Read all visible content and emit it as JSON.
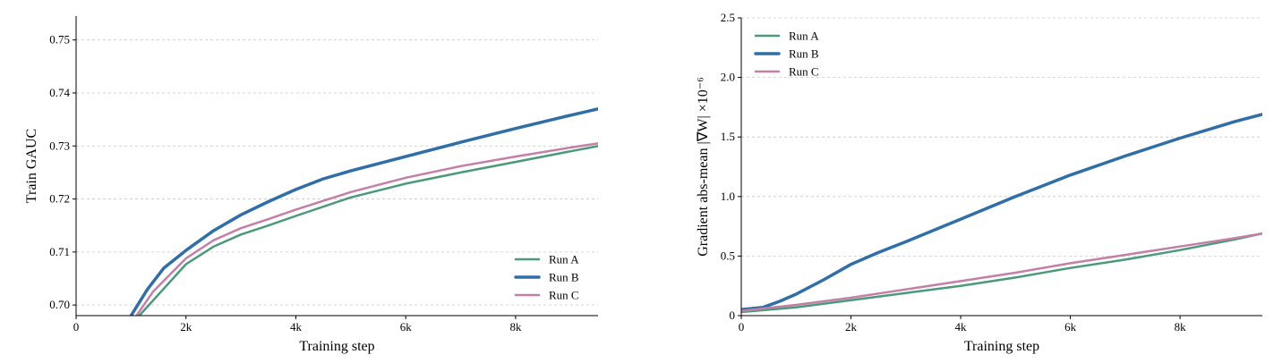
{
  "chart_data": [
    {
      "type": "line",
      "xlabel": "Training step",
      "ylabel": "Train GAUC",
      "xlim": [
        0,
        9500
      ],
      "ylim": [
        0.698,
        0.7545
      ],
      "xticks": [
        0,
        2000,
        4000,
        6000,
        8000
      ],
      "xtick_labels": [
        "0",
        "2k",
        "4k",
        "6k",
        "8k"
      ],
      "yticks": [
        0.7,
        0.71,
        0.72,
        0.73,
        0.74,
        0.75
      ],
      "ytick_labels": [
        "0.70",
        "0.71",
        "0.72",
        "0.73",
        "0.74",
        "0.75"
      ],
      "grid": "horizontal",
      "legend_position": "lower-right",
      "series": [
        {
          "name": "Run A",
          "color": "#4a9a7a",
          "width": 2.5,
          "points": [
            [
              1150,
              0.698
            ],
            [
              1500,
              0.702
            ],
            [
              2000,
              0.7077
            ],
            [
              2500,
              0.711
            ],
            [
              3000,
              0.7133
            ],
            [
              3500,
              0.715
            ],
            [
              4000,
              0.7168
            ],
            [
              5000,
              0.7203
            ],
            [
              6000,
              0.7229
            ],
            [
              7000,
              0.725
            ],
            [
              8000,
              0.727
            ],
            [
              9000,
              0.729
            ],
            [
              9500,
              0.73
            ]
          ]
        },
        {
          "name": "Run B",
          "color": "#2f6ea6",
          "width": 3.5,
          "points": [
            [
              1000,
              0.698
            ],
            [
              1300,
              0.703
            ],
            [
              1600,
              0.707
            ],
            [
              2000,
              0.7103
            ],
            [
              2500,
              0.714
            ],
            [
              3000,
              0.717
            ],
            [
              3500,
              0.7195
            ],
            [
              4000,
              0.7218
            ],
            [
              4500,
              0.7238
            ],
            [
              5000,
              0.7253
            ],
            [
              6000,
              0.728
            ],
            [
              7000,
              0.7307
            ],
            [
              8000,
              0.7333
            ],
            [
              9000,
              0.7358
            ],
            [
              9500,
              0.737
            ]
          ]
        },
        {
          "name": "Run C",
          "color": "#c47fa8",
          "width": 2.5,
          "points": [
            [
              1100,
              0.698
            ],
            [
              1400,
              0.7025
            ],
            [
              2000,
              0.7088
            ],
            [
              2500,
              0.7122
            ],
            [
              3000,
              0.7145
            ],
            [
              3500,
              0.7162
            ],
            [
              4000,
              0.718
            ],
            [
              5000,
              0.7213
            ],
            [
              6000,
              0.724
            ],
            [
              7000,
              0.7262
            ],
            [
              8000,
              0.728
            ],
            [
              9000,
              0.7297
            ],
            [
              9500,
              0.7305
            ]
          ]
        }
      ]
    },
    {
      "type": "line",
      "xlabel": "Training step",
      "ylabel": "Gradient abs-mean |∇W| ×10⁻⁶",
      "xlim": [
        0,
        9500
      ],
      "ylim": [
        0,
        2.5
      ],
      "xticks": [
        0,
        2000,
        4000,
        6000,
        8000
      ],
      "xtick_labels": [
        "0",
        "2k",
        "4k",
        "6k",
        "8k"
      ],
      "yticks": [
        0,
        0.5,
        1.0,
        1.5,
        2.0,
        2.5
      ],
      "ytick_labels": [
        "0",
        "0.5",
        "1.0",
        "1.5",
        "2.0",
        "2.5"
      ],
      "grid": "horizontal",
      "legend_position": "upper-left",
      "series": [
        {
          "name": "Run A",
          "color": "#4a9a7a",
          "width": 2.5,
          "points": [
            [
              0,
              0.03
            ],
            [
              1000,
              0.07
            ],
            [
              2000,
              0.13
            ],
            [
              3000,
              0.19
            ],
            [
              4000,
              0.25
            ],
            [
              5000,
              0.32
            ],
            [
              6000,
              0.4
            ],
            [
              7000,
              0.47
            ],
            [
              8000,
              0.55
            ],
            [
              9000,
              0.64
            ],
            [
              9500,
              0.69
            ]
          ]
        },
        {
          "name": "Run B",
          "color": "#2f6ea6",
          "width": 3.5,
          "points": [
            [
              0,
              0.05
            ],
            [
              400,
              0.07
            ],
            [
              700,
              0.12
            ],
            [
              1000,
              0.18
            ],
            [
              1500,
              0.3
            ],
            [
              2000,
              0.43
            ],
            [
              2500,
              0.53
            ],
            [
              3000,
              0.62
            ],
            [
              4000,
              0.81
            ],
            [
              5000,
              1.0
            ],
            [
              6000,
              1.18
            ],
            [
              7000,
              1.34
            ],
            [
              8000,
              1.49
            ],
            [
              9000,
              1.63
            ],
            [
              9500,
              1.69
            ]
          ]
        },
        {
          "name": "Run C",
          "color": "#c47fa8",
          "width": 2.5,
          "points": [
            [
              0,
              0.04
            ],
            [
              1000,
              0.09
            ],
            [
              2000,
              0.15
            ],
            [
              3000,
              0.22
            ],
            [
              4000,
              0.29
            ],
            [
              5000,
              0.36
            ],
            [
              6000,
              0.44
            ],
            [
              7000,
              0.51
            ],
            [
              8000,
              0.58
            ],
            [
              9000,
              0.65
            ],
            [
              9500,
              0.69
            ]
          ]
        }
      ]
    }
  ]
}
